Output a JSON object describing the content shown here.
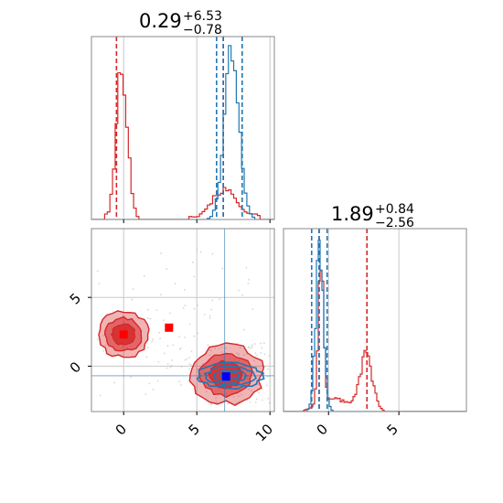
{
  "colors": {
    "red": "#d62728",
    "blue": "#1f77b4",
    "grid": "#c8c8c8",
    "axis": "#888888"
  },
  "chart_data": [
    {
      "type": "histogram",
      "panel": "top-left marginal",
      "title": {
        "value": "0.29",
        "upper": "+6.53",
        "lower": "−0.78"
      },
      "xlim": [
        -2.2,
        10.3
      ],
      "grid": true,
      "series": [
        {
          "color": "#d62728",
          "peaks": [
            {
              "center": -0.2,
              "relative_height": 0.84
            },
            {
              "center": 6.8,
              "relative_height": 0.16
            }
          ],
          "quantiles": [
            -0.49,
            6.81
          ]
        },
        {
          "color": "#1f77b4",
          "peaks": [
            {
              "center": 7.3,
              "relative_height": 0.91
            }
          ],
          "quantiles": [
            6.35,
            6.81,
            8.1
          ]
        }
      ]
    },
    {
      "type": "histogram",
      "panel": "bottom-right marginal",
      "title": {
        "value": "1.89",
        "upper": "+0.84",
        "lower": "−2.56"
      },
      "xlim": [
        -3.2,
        9.8
      ],
      "x_ticks": [
        "0",
        "5"
      ],
      "grid": true,
      "series": [
        {
          "color": "#d62728",
          "peaks": [
            {
              "center": -0.6,
              "relative_height": 0.82
            },
            {
              "center": 2.6,
              "relative_height": 0.3
            }
          ],
          "quantiles": [
            -0.67,
            2.73
          ]
        },
        {
          "color": "#1f77b4",
          "peaks": [
            {
              "center": -0.7,
              "relative_height": 0.9
            }
          ],
          "quantiles": [
            -1.2,
            -0.67,
            -0.1
          ]
        }
      ]
    },
    {
      "type": "contour",
      "panel": "bottom-left 2D",
      "xlim": [
        -2.2,
        10.3
      ],
      "ylim": [
        -3.3,
        10.0
      ],
      "x_ticks": [
        "0",
        "5",
        "10"
      ],
      "y_ticks": [
        "0",
        "5"
      ],
      "grid": true,
      "red_clusters": [
        {
          "center": [
            0.0,
            2.3
          ],
          "rx": 1.7,
          "ry": 1.65
        },
        {
          "center": [
            7.0,
            -0.6
          ],
          "rx": 2.5,
          "ry": 2.1
        }
      ],
      "blue_cluster": {
        "center": [
          7.3,
          -0.7
        ],
        "rx": 2.2,
        "ry": 0.9
      },
      "markers": [
        {
          "x": 3.1,
          "y": 2.8,
          "color": "#ff0000"
        },
        {
          "x": 0.0,
          "y": 2.3,
          "color": "#ff0000"
        },
        {
          "x": 7.0,
          "y": -0.75,
          "color": "#0000ff"
        }
      ],
      "cross_lines": {
        "x": 6.9,
        "y": -0.7
      }
    }
  ]
}
